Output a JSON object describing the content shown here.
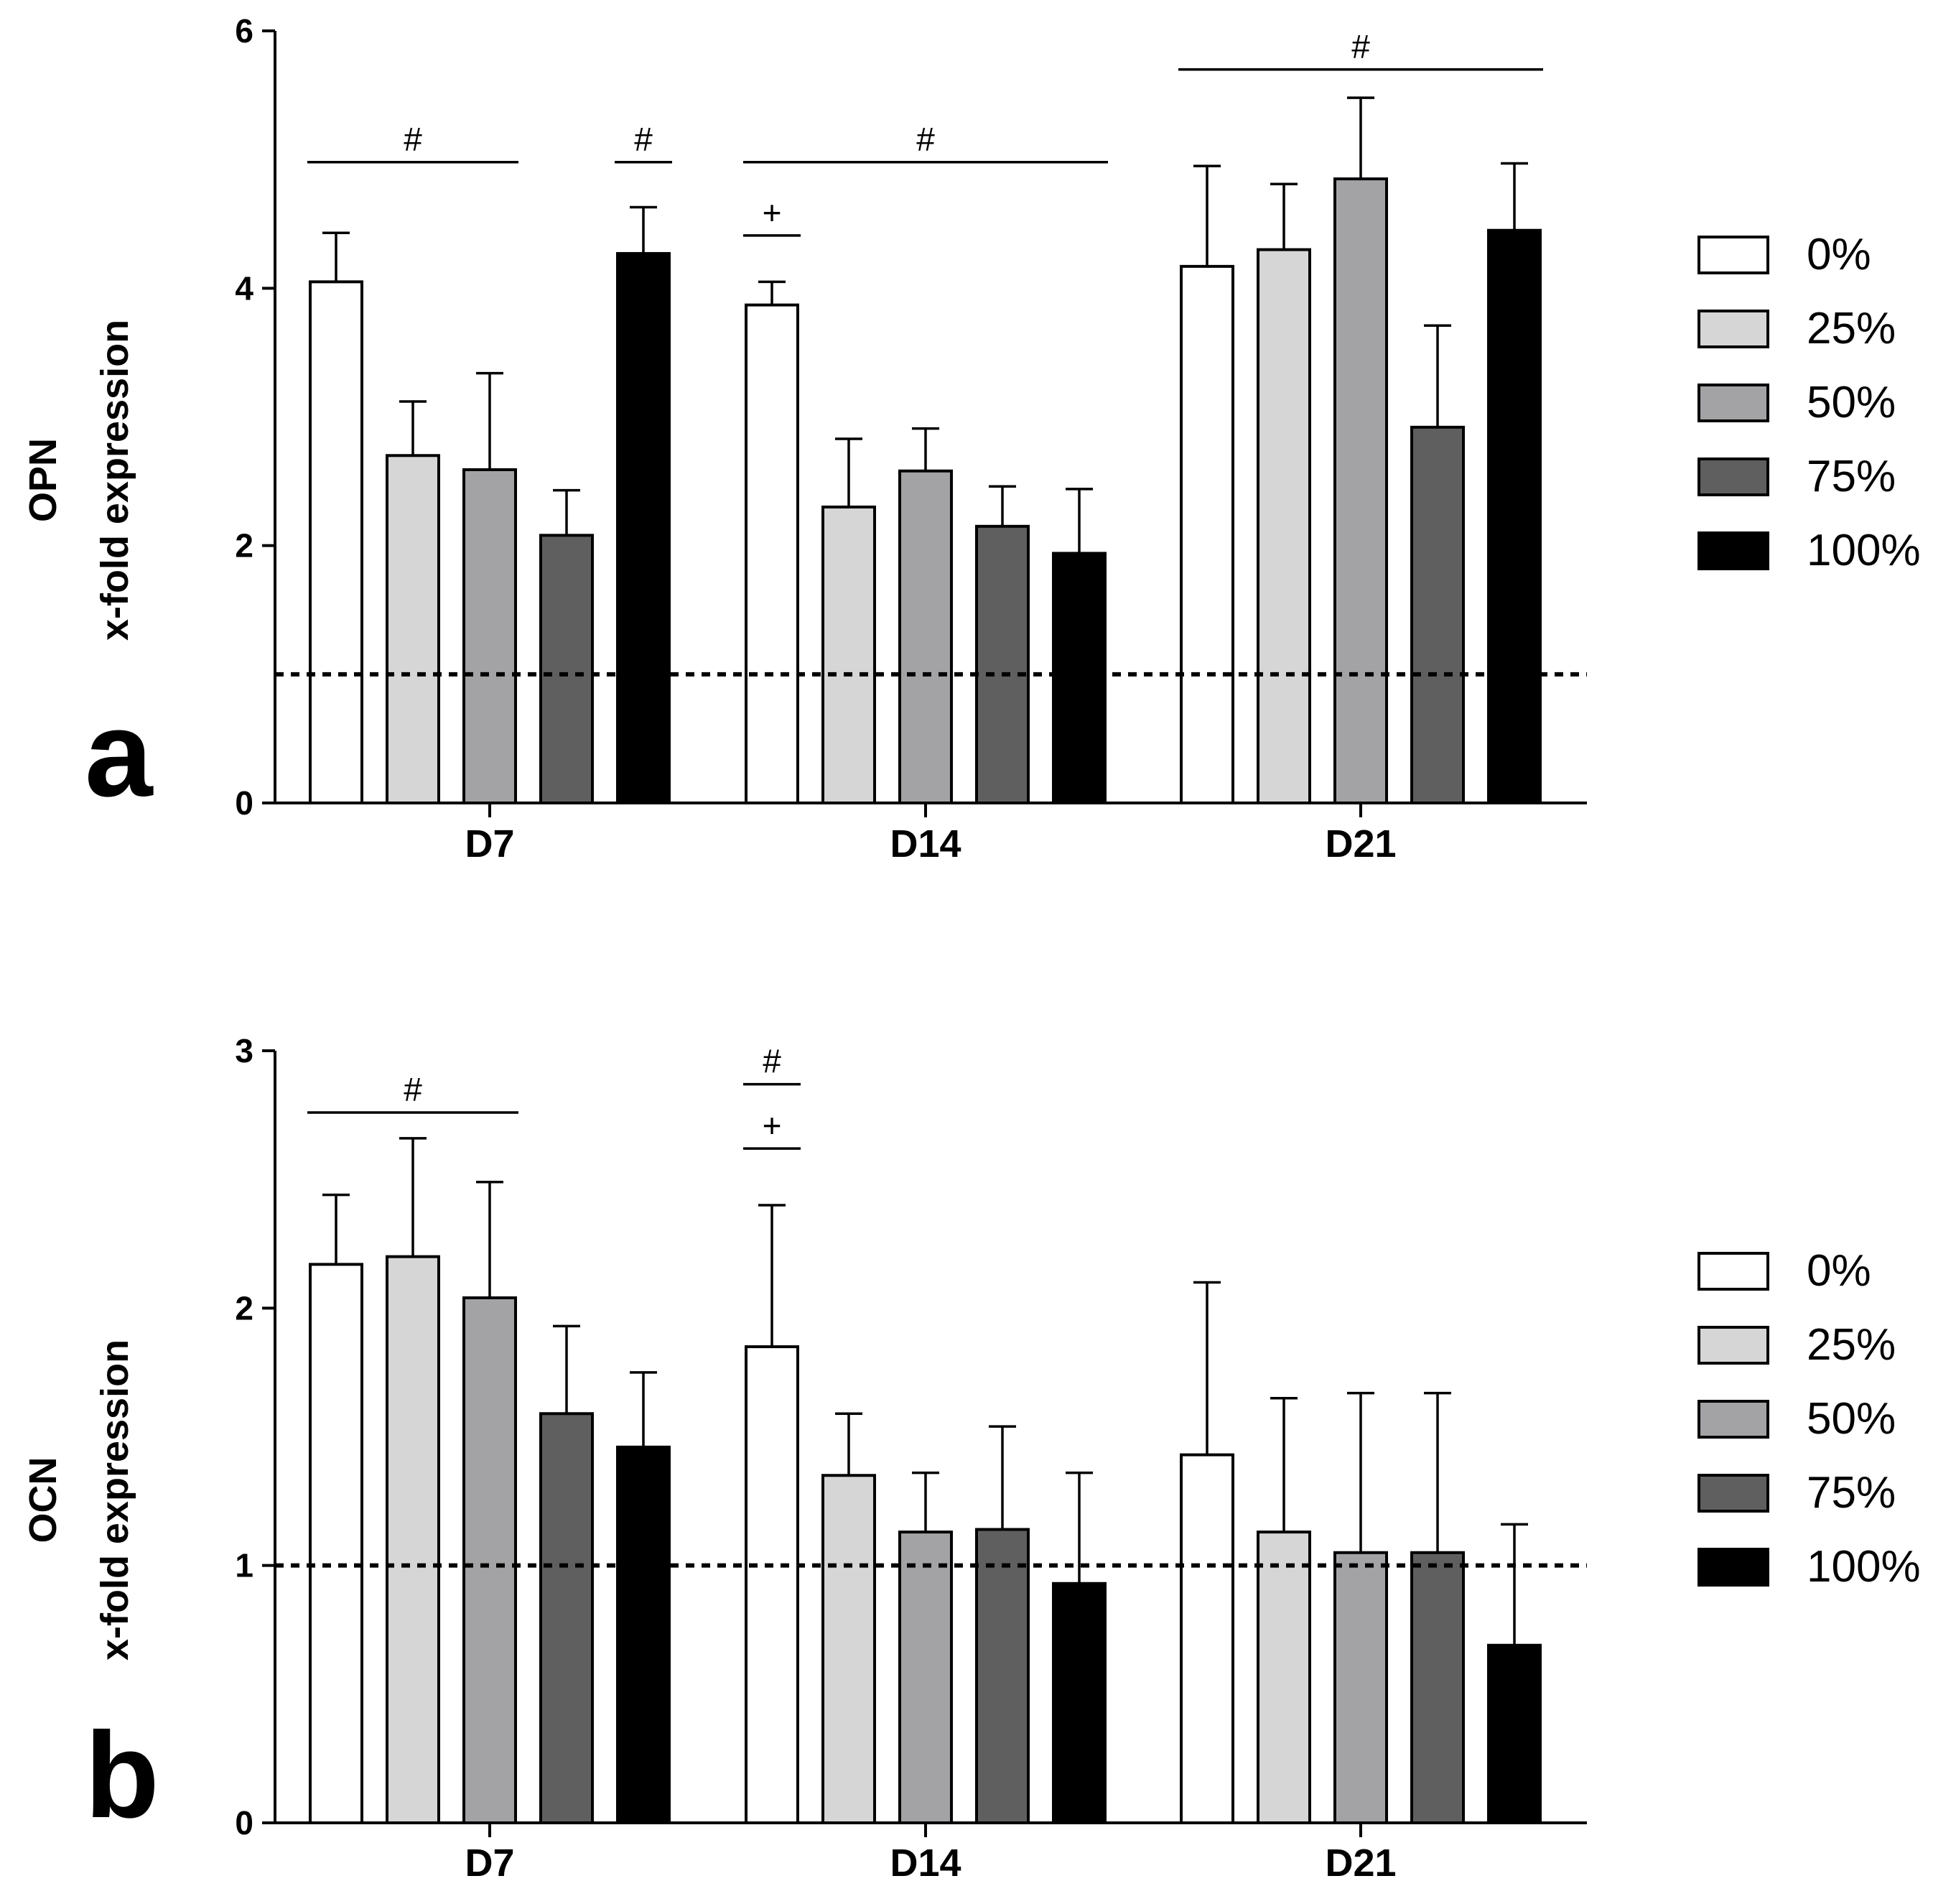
{
  "legend": {
    "entries": [
      "0%",
      "25%",
      "50%",
      "75%",
      "100%"
    ],
    "colors": [
      "#ffffff",
      "#d6d6d6",
      "#a3a3a6",
      "#5f5f5f",
      "#000000"
    ]
  },
  "chart_data": [
    {
      "type": "bar",
      "panel_label": "a",
      "ylabel_line1": "OPN",
      "ylabel_line2": "x-fold expression",
      "categories": [
        "D7",
        "D14",
        "D21"
      ],
      "ylim": [
        0,
        6
      ],
      "yticks": [
        0,
        2,
        4,
        6
      ],
      "yticks_labels": [
        "0",
        "2",
        "4",
        "6"
      ],
      "reference_line": 1,
      "series": [
        {
          "name": "0%",
          "values": [
            4.05,
            3.87,
            4.17
          ],
          "errors": [
            0.38,
            0.18,
            0.78
          ]
        },
        {
          "name": "25%",
          "values": [
            2.7,
            2.3,
            4.3
          ],
          "errors": [
            0.42,
            0.53,
            0.51
          ]
        },
        {
          "name": "50%",
          "values": [
            2.59,
            2.58,
            4.85
          ],
          "errors": [
            0.75,
            0.33,
            0.63
          ]
        },
        {
          "name": "75%",
          "values": [
            2.08,
            2.15,
            2.92
          ],
          "errors": [
            0.35,
            0.31,
            0.79
          ]
        },
        {
          "name": "100%",
          "values": [
            4.27,
            1.94,
            4.45
          ],
          "errors": [
            0.36,
            0.5,
            0.52
          ]
        }
      ],
      "annotations": [
        {
          "text": "#",
          "category": "D7",
          "from": 0,
          "to": 2,
          "level": 4.98
        },
        {
          "text": "#",
          "category": "D7",
          "from": 4,
          "to": 4,
          "level": 4.98
        },
        {
          "text": "#",
          "category": "D14",
          "from": 0,
          "to": 4,
          "level": 4.98
        },
        {
          "text": "+",
          "category": "D14",
          "from": 0,
          "to": 0,
          "level": 4.41
        },
        {
          "text": "#",
          "category": "D21",
          "from": 0,
          "to": 4,
          "level": 5.7
        }
      ]
    },
    {
      "type": "bar",
      "panel_label": "b",
      "ylabel_line1": "OCN",
      "ylabel_line2": "x-fold expression",
      "categories": [
        "D7",
        "D14",
        "D21"
      ],
      "ylim": [
        0,
        3
      ],
      "yticks": [
        0,
        1,
        2,
        3
      ],
      "yticks_labels": [
        "0",
        "1",
        "2",
        "3"
      ],
      "reference_line": 1,
      "series": [
        {
          "name": "0%",
          "values": [
            2.17,
            1.85,
            1.43
          ],
          "errors": [
            0.27,
            0.55,
            0.67
          ]
        },
        {
          "name": "25%",
          "values": [
            2.2,
            1.35,
            1.13
          ],
          "errors": [
            0.46,
            0.24,
            0.52
          ]
        },
        {
          "name": "50%",
          "values": [
            2.04,
            1.13,
            1.05
          ],
          "errors": [
            0.45,
            0.23,
            0.62
          ]
        },
        {
          "name": "75%",
          "values": [
            1.59,
            1.14,
            1.05
          ],
          "errors": [
            0.34,
            0.4,
            0.62
          ]
        },
        {
          "name": "100%",
          "values": [
            1.46,
            0.93,
            0.69
          ],
          "errors": [
            0.29,
            0.43,
            0.47
          ]
        }
      ],
      "annotations": [
        {
          "text": "#",
          "category": "D7",
          "from": 0,
          "to": 2,
          "level": 2.76
        },
        {
          "text": "#",
          "category": "D14",
          "from": 0,
          "to": 0,
          "level": 2.87
        },
        {
          "text": "+",
          "category": "D14",
          "from": 0,
          "to": 0,
          "level": 2.62
        }
      ]
    }
  ]
}
